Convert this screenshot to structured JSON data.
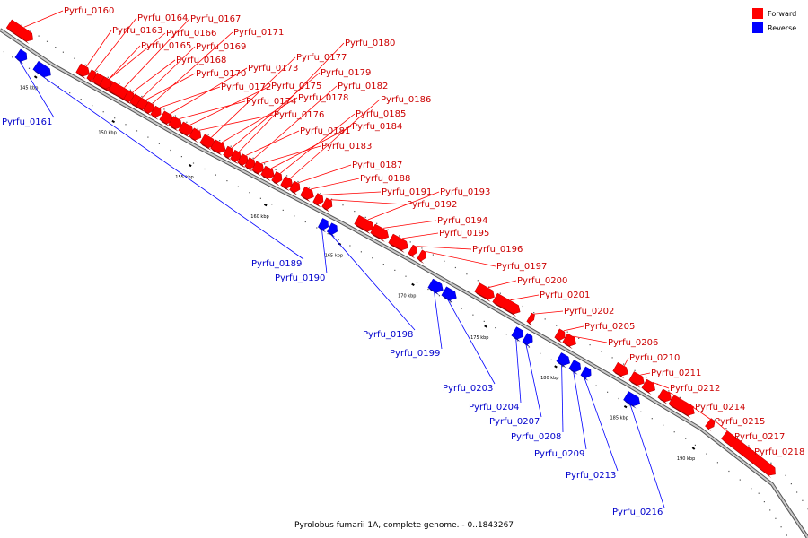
{
  "caption": "Pyrolobus fumarii 1A, complete genome. - 0..1843267",
  "legend": [
    {
      "label": "Forward",
      "color": "#ff0000"
    },
    {
      "label": "Reverse",
      "color": "#0000ff"
    }
  ],
  "colors": {
    "forward": "#ff0000",
    "reverse": "#0000ff",
    "forward_label": "#cc0000",
    "reverse_label": "#0000cc",
    "backbone": "#999999"
  },
  "ticks": [
    "145 kbp",
    "150 kbp",
    "155 kbp",
    "160 kbp",
    "165 kbp",
    "170 kbp",
    "175 kbp",
    "180 kbp",
    "185 kbp",
    "190 kbp"
  ],
  "genes": {
    "forward": [
      "Pyrfu_0160",
      "Pyrfu_0163",
      "Pyrfu_0164",
      "Pyrfu_0165",
      "Pyrfu_0166",
      "Pyrfu_0167",
      "Pyrfu_0168",
      "Pyrfu_0169",
      "Pyrfu_0170",
      "Pyrfu_0171",
      "Pyrfu_0172",
      "Pyrfu_0173",
      "Pyrfu_0174",
      "Pyrfu_0175",
      "Pyrfu_0176",
      "Pyrfu_0177",
      "Pyrfu_0178",
      "Pyrfu_0179",
      "Pyrfu_0180",
      "Pyrfu_0181",
      "Pyrfu_0182",
      "Pyrfu_0183",
      "Pyrfu_0184",
      "Pyrfu_0185",
      "Pyrfu_0186",
      "Pyrfu_0187",
      "Pyrfu_0188",
      "Pyrfu_0191",
      "Pyrfu_0192",
      "Pyrfu_0193",
      "Pyrfu_0194",
      "Pyrfu_0195",
      "Pyrfu_0196",
      "Pyrfu_0197",
      "Pyrfu_0200",
      "Pyrfu_0201",
      "Pyrfu_0202",
      "Pyrfu_0205",
      "Pyrfu_0206",
      "Pyrfu_0210",
      "Pyrfu_0211",
      "Pyrfu_0212",
      "Pyrfu_0214",
      "Pyrfu_0215",
      "Pyrfu_0217",
      "Pyrfu_0218"
    ],
    "reverse": [
      "Pyrfu_0161",
      "Pyrfu_0189",
      "Pyrfu_0190",
      "Pyrfu_0198",
      "Pyrfu_0199",
      "Pyrfu_0203",
      "Pyrfu_0204",
      "Pyrfu_0207",
      "Pyrfu_0208",
      "Pyrfu_0209",
      "Pyrfu_0213",
      "Pyrfu_0216"
    ]
  }
}
